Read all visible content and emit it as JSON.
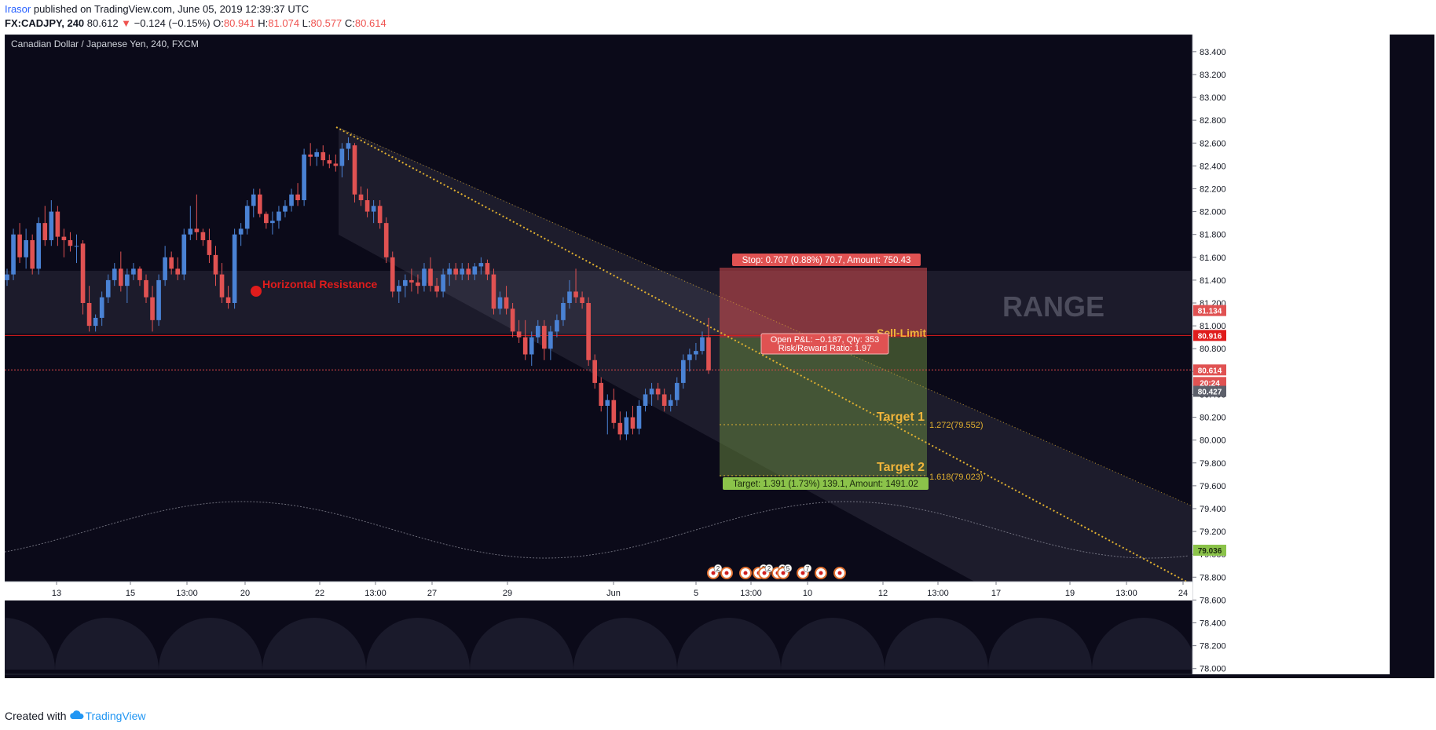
{
  "header": {
    "author": "Irasor",
    "published": " published on TradingView.com, June 05, 2019 12:39:37 UTC",
    "symbol": "FX:CADJPY, 240",
    "last": "80.612",
    "change_arrow": "▼",
    "change": "−0.124 (−0.15%)",
    "o_label": "O:",
    "o": "80.941",
    "h_label": "H:",
    "h": "81.074",
    "l_label": "L:",
    "l": "80.577",
    "c_label": "C:",
    "c": "80.614"
  },
  "chart_title": "Canadian Dollar / Japanese Yen, 240, FXCM",
  "footer": {
    "created": "Created with",
    "brand": "TradingView",
    "logo_icon": "tradingview-cloud-icon"
  },
  "colors": {
    "background": "#0b0a19",
    "up_candle": "#4a82d4",
    "down_candle": "#e05252",
    "resistance": "#e01c1c",
    "fib_gold": "#e0b030",
    "stop_zone": "#c2474a",
    "target_zone": "#6a8a3f"
  },
  "chart_data": {
    "type": "candlestick",
    "title": "Canadian Dollar / Japanese Yen, 240, FXCM",
    "y_axis": {
      "ticks": [
        "83.400",
        "83.200",
        "83.000",
        "82.800",
        "82.600",
        "82.400",
        "82.200",
        "82.000",
        "81.800",
        "81.600",
        "81.400",
        "81.200",
        "81.000",
        "80.800",
        "80.600",
        "80.400",
        "80.200",
        "80.000",
        "79.800",
        "79.600",
        "79.400",
        "79.200",
        "79.000",
        "78.800",
        "78.600",
        "78.400",
        "78.200",
        "78.000"
      ],
      "range": [
        77.95,
        83.55
      ],
      "price_labels": [
        {
          "value": "81.134",
          "kind": "stop"
        },
        {
          "value": "80.916",
          "kind": "resistance"
        },
        {
          "value": "80.614",
          "kind": "last"
        },
        {
          "value": "20:24",
          "kind": "countdown"
        },
        {
          "value": "80.427",
          "kind": "entry"
        },
        {
          "value": "79.036",
          "kind": "target"
        }
      ]
    },
    "x_axis": {
      "ticks": [
        "13",
        "15",
        "13:00",
        "20",
        "22",
        "13:00",
        "27",
        "29",
        "Jun",
        "5",
        "13:00",
        "10",
        "12",
        "13:00",
        "17",
        "19",
        "13:00",
        "24"
      ]
    },
    "candles": [
      [
        81.4,
        81.5,
        81.35,
        81.45
      ],
      [
        81.45,
        81.85,
        81.4,
        81.8
      ],
      [
        81.8,
        81.9,
        81.55,
        81.6
      ],
      [
        81.6,
        81.85,
        81.5,
        81.75
      ],
      [
        81.75,
        81.8,
        81.45,
        81.5
      ],
      [
        81.5,
        81.95,
        81.45,
        81.9
      ],
      [
        81.9,
        82.05,
        81.7,
        81.75
      ],
      [
        81.75,
        82.1,
        81.7,
        82.0
      ],
      [
        82.0,
        82.05,
        81.7,
        81.78
      ],
      [
        81.78,
        81.85,
        81.6,
        81.75
      ],
      [
        81.75,
        81.82,
        81.65,
        81.7
      ],
      [
        81.7,
        81.8,
        81.55,
        81.7
      ],
      [
        81.72,
        81.75,
        81.1,
        81.2
      ],
      [
        81.2,
        81.35,
        80.95,
        81.0
      ],
      [
        81.0,
        81.1,
        80.95,
        81.07
      ],
      [
        81.07,
        81.3,
        81.0,
        81.25
      ],
      [
        81.25,
        81.45,
        81.2,
        81.4
      ],
      [
        81.4,
        81.55,
        81.35,
        81.5
      ],
      [
        81.5,
        81.65,
        81.3,
        81.35
      ],
      [
        81.35,
        81.5,
        81.2,
        81.45
      ],
      [
        81.45,
        81.55,
        81.4,
        81.5
      ],
      [
        81.5,
        81.52,
        81.35,
        81.4
      ],
      [
        81.4,
        81.45,
        81.2,
        81.25
      ],
      [
        81.25,
        81.35,
        80.95,
        81.05
      ],
      [
        81.05,
        81.45,
        81.0,
        81.4
      ],
      [
        81.4,
        81.7,
        81.35,
        81.6
      ],
      [
        81.6,
        81.65,
        81.45,
        81.5
      ],
      [
        81.5,
        81.6,
        81.4,
        81.45
      ],
      [
        81.45,
        81.85,
        81.4,
        81.8
      ],
      [
        81.8,
        82.05,
        81.75,
        81.85
      ],
      [
        81.85,
        82.15,
        81.75,
        81.82
      ],
      [
        81.82,
        81.85,
        81.7,
        81.75
      ],
      [
        81.75,
        81.85,
        81.55,
        81.62
      ],
      [
        81.62,
        81.7,
        81.35,
        81.45
      ],
      [
        81.45,
        81.55,
        81.2,
        81.25
      ],
      [
        81.25,
        81.35,
        81.15,
        81.2
      ],
      [
        81.2,
        81.85,
        81.15,
        81.8
      ],
      [
        81.8,
        81.9,
        81.7,
        81.85
      ],
      [
        81.85,
        82.1,
        81.8,
        82.05
      ],
      [
        82.05,
        82.2,
        81.95,
        82.15
      ],
      [
        82.15,
        82.2,
        81.95,
        81.98
      ],
      [
        81.98,
        82.0,
        81.85,
        81.9
      ],
      [
        81.9,
        82.0,
        81.8,
        81.92
      ],
      [
        81.92,
        82.05,
        81.85,
        82.0
      ],
      [
        82.0,
        82.1,
        81.95,
        82.05
      ],
      [
        82.05,
        82.2,
        82.0,
        82.15
      ],
      [
        82.15,
        82.25,
        82.05,
        82.1
      ],
      [
        82.1,
        82.55,
        82.05,
        82.5
      ],
      [
        82.5,
        82.6,
        82.4,
        82.48
      ],
      [
        82.48,
        82.55,
        82.4,
        82.52
      ],
      [
        82.52,
        82.58,
        82.4,
        82.45
      ],
      [
        82.45,
        82.5,
        82.38,
        82.42
      ],
      [
        82.42,
        82.5,
        82.35,
        82.4
      ],
      [
        82.4,
        82.6,
        82.3,
        82.55
      ],
      [
        82.55,
        82.65,
        82.45,
        82.6
      ],
      [
        82.58,
        82.6,
        82.08,
        82.15
      ],
      [
        82.15,
        82.22,
        82.05,
        82.1
      ],
      [
        82.1,
        82.2,
        81.95,
        82.0
      ],
      [
        82.0,
        82.1,
        81.9,
        82.05
      ],
      [
        82.05,
        82.1,
        81.85,
        81.9
      ],
      [
        81.9,
        81.95,
        81.55,
        81.6
      ],
      [
        81.6,
        81.65,
        81.25,
        81.3
      ],
      [
        81.3,
        81.4,
        81.2,
        81.35
      ],
      [
        81.35,
        81.45,
        81.25,
        81.4
      ],
      [
        81.4,
        81.5,
        81.3,
        81.38
      ],
      [
        81.38,
        81.45,
        81.28,
        81.35
      ],
      [
        81.35,
        81.55,
        81.3,
        81.5
      ],
      [
        81.5,
        81.6,
        81.3,
        81.35
      ],
      [
        81.35,
        81.42,
        81.25,
        81.3
      ],
      [
        81.3,
        81.5,
        81.25,
        81.45
      ],
      [
        81.45,
        81.55,
        81.35,
        81.5
      ],
      [
        81.5,
        81.55,
        81.4,
        81.45
      ],
      [
        81.45,
        81.55,
        81.4,
        81.5
      ],
      [
        81.5,
        81.55,
        81.4,
        81.45
      ],
      [
        81.45,
        81.55,
        81.4,
        81.52
      ],
      [
        81.52,
        81.6,
        81.45,
        81.55
      ],
      [
        81.55,
        81.58,
        81.4,
        81.45
      ],
      [
        81.45,
        81.5,
        81.1,
        81.15
      ],
      [
        81.15,
        81.3,
        81.1,
        81.25
      ],
      [
        81.25,
        81.35,
        81.1,
        81.15
      ],
      [
        81.15,
        81.2,
        80.9,
        80.95
      ],
      [
        80.95,
        81.05,
        80.85,
        80.9
      ],
      [
        80.9,
        81.05,
        80.7,
        80.75
      ],
      [
        80.75,
        80.95,
        80.65,
        80.9
      ],
      [
        80.9,
        81.05,
        80.85,
        81.0
      ],
      [
        81.0,
        81.05,
        80.7,
        80.8
      ],
      [
        80.8,
        81.0,
        80.7,
        80.95
      ],
      [
        80.95,
        81.1,
        80.9,
        81.05
      ],
      [
        81.05,
        81.25,
        81.0,
        81.2
      ],
      [
        81.2,
        81.4,
        81.15,
        81.3
      ],
      [
        81.3,
        81.5,
        81.2,
        81.25
      ],
      [
        81.25,
        81.3,
        81.15,
        81.2
      ],
      [
        81.2,
        81.25,
        80.65,
        80.7
      ],
      [
        80.7,
        80.75,
        80.45,
        80.5
      ],
      [
        80.5,
        80.55,
        80.25,
        80.3
      ],
      [
        80.3,
        80.4,
        80.05,
        80.35
      ],
      [
        80.35,
        80.45,
        80.1,
        80.15
      ],
      [
        80.15,
        80.25,
        80.0,
        80.05
      ],
      [
        80.05,
        80.25,
        80.0,
        80.2
      ],
      [
        80.2,
        80.3,
        80.05,
        80.1
      ],
      [
        80.1,
        80.35,
        80.05,
        80.3
      ],
      [
        80.3,
        80.45,
        80.25,
        80.4
      ],
      [
        80.4,
        80.5,
        80.3,
        80.45
      ],
      [
        80.45,
        80.5,
        80.35,
        80.4
      ],
      [
        80.4,
        80.45,
        80.25,
        80.3
      ],
      [
        80.3,
        80.4,
        80.25,
        80.35
      ],
      [
        80.35,
        80.55,
        80.3,
        80.5
      ],
      [
        80.5,
        80.75,
        80.45,
        80.7
      ],
      [
        80.7,
        80.8,
        80.6,
        80.75
      ],
      [
        80.75,
        80.85,
        80.7,
        80.78
      ],
      [
        80.78,
        80.95,
        80.75,
        80.9
      ],
      [
        80.9,
        81.07,
        80.58,
        80.61
      ]
    ],
    "annotations": [
      {
        "text": "Horizontal Resistance",
        "price": 80.916
      },
      {
        "text": "RANGE"
      },
      {
        "text": "Sell-Limit",
        "price": 80.427
      },
      {
        "text": "Target 1",
        "fib": "1.272(79.552)"
      },
      {
        "text": "Target 2",
        "fib": "1.618(79.023)"
      },
      {
        "text": "Stop: 0.707 (0.88%) 70.7, Amount: 750.43"
      },
      {
        "text": "Open P&L: −0.187, Qty: 353"
      },
      {
        "text": "Risk/Reward Ratio: 1.97"
      },
      {
        "text": "Target: 1.391 (1.73%) 139.1, Amount: 1491.02"
      }
    ],
    "event_markers": [
      "2",
      "",
      "",
      "2",
      "2",
      "2",
      "5",
      "7",
      "",
      ""
    ]
  }
}
